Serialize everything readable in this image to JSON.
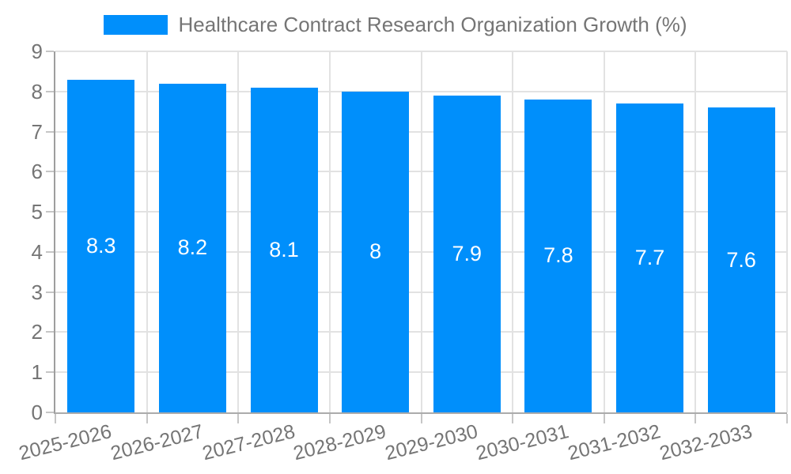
{
  "legend": {
    "label": "Healthcare Contract Research Organization Growth (%)"
  },
  "chart_data": {
    "type": "bar",
    "title": "Healthcare Contract Research Organization Growth (%)",
    "series_name": "Healthcare Contract Research Organization Growth (%)",
    "categories": [
      "2025-2026",
      "2026-2027",
      "2027-2028",
      "2028-2029",
      "2029-2030",
      "2030-2031",
      "2031-2032",
      "2032-2033"
    ],
    "values": [
      8.3,
      8.2,
      8.1,
      8,
      7.9,
      7.8,
      7.7,
      7.6
    ],
    "value_labels": [
      "8.3",
      "8.2",
      "8.1",
      "8",
      "7.9",
      "7.8",
      "7.7",
      "7.6"
    ],
    "xlabel": "",
    "ylabel": "",
    "ylim": [
      0,
      9
    ],
    "y_ticks": [
      "0",
      "1",
      "2",
      "3",
      "4",
      "5",
      "6",
      "7",
      "8",
      "9"
    ],
    "grid": true,
    "legend_position": "top",
    "colors": {
      "bar": "#008FFB",
      "bar_label": "#FFFFFF",
      "axis_text": "#757575",
      "gridline": "#E2E2E2",
      "axis_line": "#9E9E9E",
      "tick": "#C6C6C6",
      "background": "#FFFFFF"
    }
  }
}
